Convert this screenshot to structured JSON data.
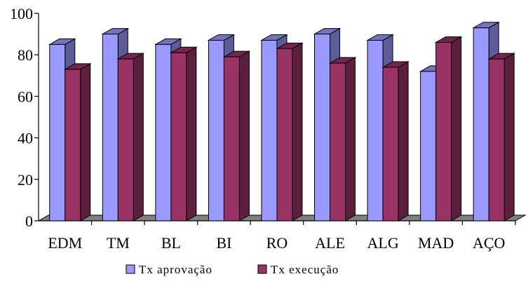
{
  "chart_data": {
    "type": "bar",
    "style": "3d-clustered-column",
    "categories": [
      "EDM",
      "TM",
      "BL",
      "BI",
      "RO",
      "ALE",
      "ALG",
      "MAD",
      "AÇO"
    ],
    "series": [
      {
        "name": "Tx aprovação",
        "values": [
          85,
          90,
          85,
          87,
          87,
          90,
          87,
          72,
          93
        ],
        "color": "#9999ff"
      },
      {
        "name": "Tx execução",
        "values": [
          73,
          78,
          81,
          79,
          83,
          76,
          74,
          86,
          78
        ],
        "color": "#993366"
      }
    ],
    "ylim": [
      0,
      100
    ],
    "yticks": [
      "0",
      "20",
      "40",
      "60",
      "80",
      "100"
    ],
    "grid": false,
    "legend_position": "bottom",
    "floor_color": "#808080"
  }
}
